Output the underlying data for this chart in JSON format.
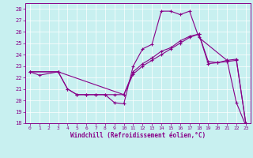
{
  "xlabel": "Windchill (Refroidissement éolien,°C)",
  "background_color": "#c8f0f0",
  "line_color": "#880088",
  "ylim": [
    18,
    28.5
  ],
  "xlim": [
    -0.5,
    23.5
  ],
  "yticks": [
    18,
    19,
    20,
    21,
    22,
    23,
    24,
    25,
    26,
    27,
    28
  ],
  "xticks": [
    0,
    1,
    2,
    3,
    4,
    5,
    6,
    7,
    8,
    9,
    10,
    11,
    12,
    13,
    14,
    15,
    16,
    17,
    18,
    19,
    20,
    21,
    22,
    23
  ],
  "line1_x": [
    0,
    1,
    3,
    4,
    5,
    6,
    7,
    8,
    9,
    10,
    11,
    12,
    13,
    14,
    15,
    16,
    17,
    18,
    21,
    22,
    23
  ],
  "line1_y": [
    22.5,
    22.2,
    22.5,
    21.0,
    20.5,
    20.5,
    20.5,
    20.5,
    19.8,
    19.7,
    23.0,
    24.5,
    24.9,
    27.8,
    27.8,
    27.5,
    27.8,
    25.5,
    23.5,
    19.8,
    17.8
  ],
  "line2_x": [
    0,
    3,
    10,
    11,
    12,
    13,
    14,
    15,
    16,
    17,
    18,
    19,
    20,
    21,
    22,
    23
  ],
  "line2_y": [
    22.5,
    22.5,
    20.5,
    22.5,
    23.2,
    23.7,
    24.3,
    24.6,
    25.2,
    25.6,
    25.8,
    23.4,
    23.3,
    23.5,
    23.6,
    18.0
  ],
  "line3_x": [
    0,
    3,
    4,
    5,
    6,
    7,
    8,
    9,
    10,
    11,
    12,
    13,
    14,
    15,
    16,
    17,
    18,
    19,
    20,
    21,
    22,
    23
  ],
  "line3_y": [
    22.5,
    22.5,
    21.0,
    20.5,
    20.5,
    20.5,
    20.5,
    20.5,
    20.5,
    22.3,
    23.0,
    23.5,
    24.0,
    24.5,
    25.0,
    25.5,
    25.8,
    23.2,
    23.3,
    23.4,
    23.5,
    18.0
  ]
}
